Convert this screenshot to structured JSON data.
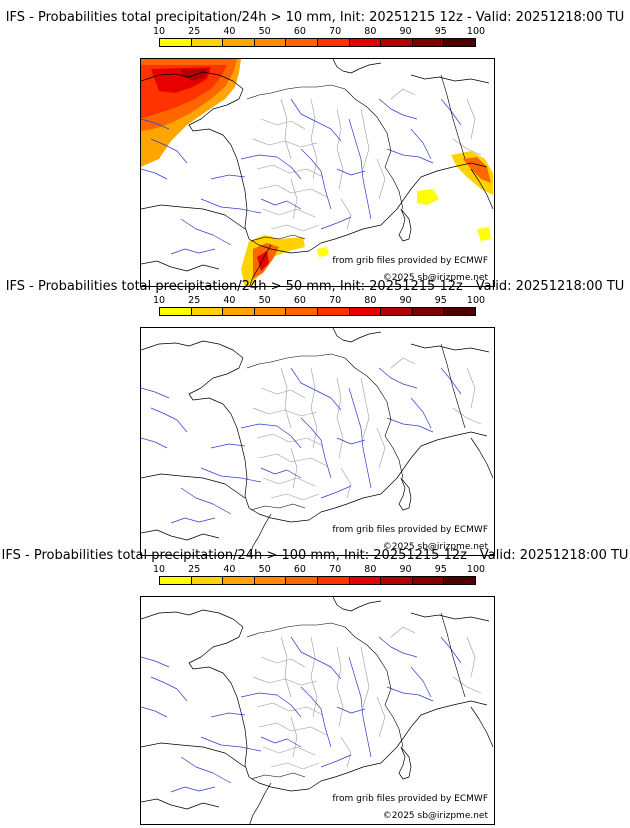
{
  "colorbar": {
    "ticks": [
      "10",
      "25",
      "40",
      "50",
      "60",
      "70",
      "80",
      "90",
      "95",
      "100"
    ],
    "colors": [
      "#ffff00",
      "#ffd200",
      "#ffa500",
      "#ff8c00",
      "#ff6600",
      "#ff3300",
      "#e60000",
      "#b30000",
      "#800000",
      "#4d0000"
    ]
  },
  "panels": [
    {
      "title": "IFS - Probabilities total precipitation/24h > 10 mm, Init: 20251215 12z - Valid: 20251218:00 TU",
      "source_text": "from grib files provided by ECMWF",
      "copyright_text": "©2025 sb@irizpme.net",
      "has_precip": true
    },
    {
      "title": "IFS - Probabilities total precipitation/24h > 50 mm, Init: 20251215 12z - Valid: 20251218:00 TU",
      "source_text": "from grib files provided by ECMWF",
      "copyright_text": "©2025 sb@irizpme.net",
      "has_precip": false
    },
    {
      "title": "IFS - Probabilities total precipitation/24h > 100 mm, Init: 20251215 12z - Valid: 20251218:00 TU",
      "source_text": "from grib files provided by ECMWF",
      "copyright_text": "©2025 sb@irizpme.net",
      "has_precip": false
    }
  ]
}
